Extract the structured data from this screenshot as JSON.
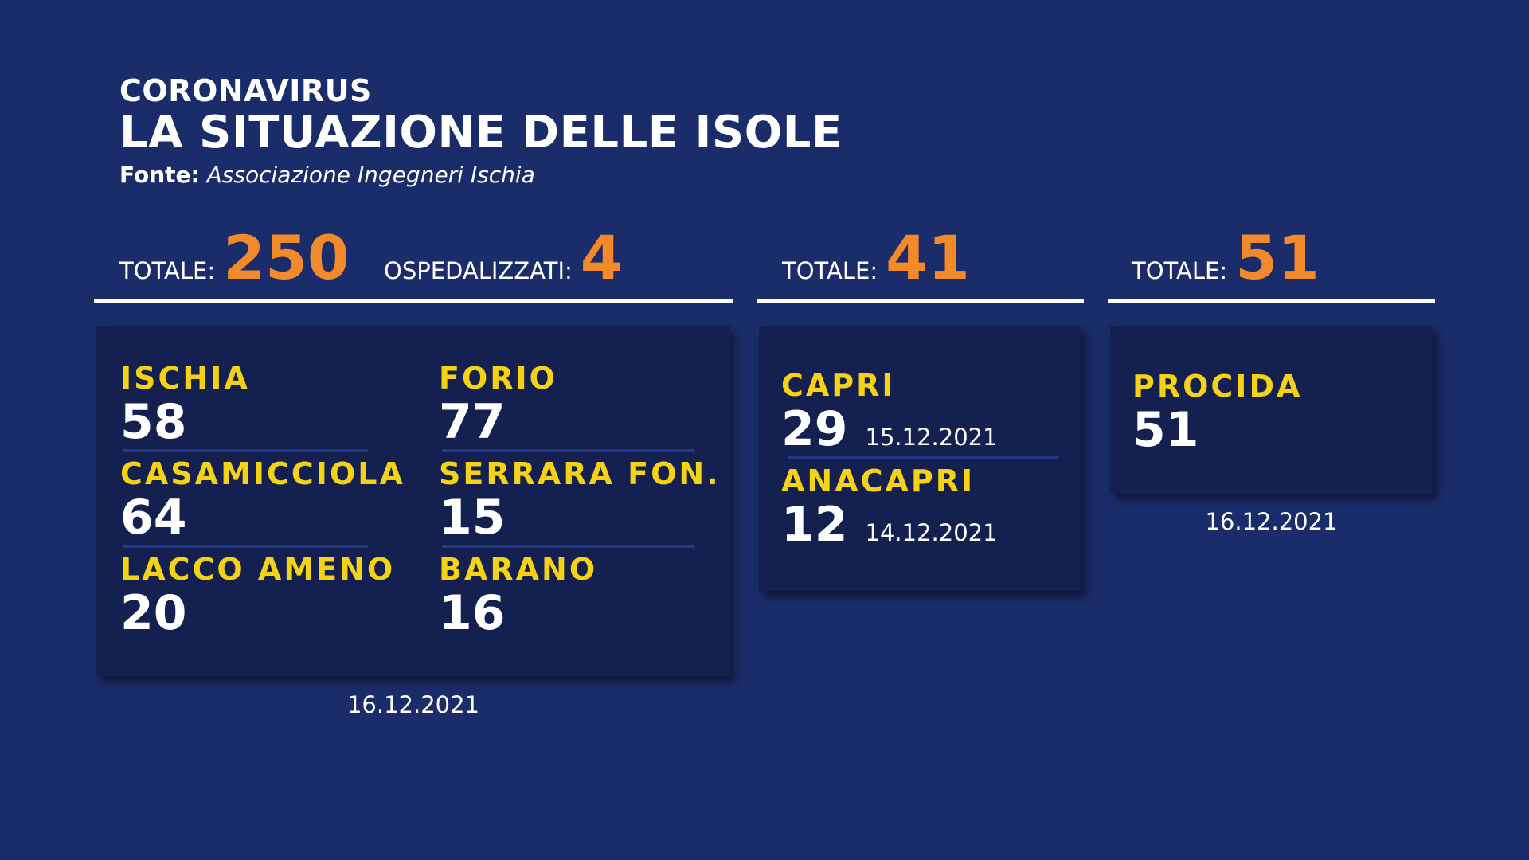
{
  "header": {
    "kicker": "CORONAVIRUS",
    "title": "LA SITUAZIONE DELLE ISOLE",
    "source_label": "Fonte:",
    "source_value": "Associazione Ingegneri Ischia"
  },
  "ischia": {
    "total_label": "TOTALE:",
    "total_value": "250",
    "hosp_label": "OSPEDALIZZATI:",
    "hosp_value": "4",
    "comuni": [
      {
        "name": "ISCHIA",
        "value": "58"
      },
      {
        "name": "FORIO",
        "value": "77"
      },
      {
        "name": "CASAMICCIOLA",
        "value": "64"
      },
      {
        "name": "SERRARA FON.",
        "value": "15"
      },
      {
        "name": "LACCO AMENO",
        "value": "20"
      },
      {
        "name": "BARANO",
        "value": "16"
      }
    ],
    "date": "16.12.2021"
  },
  "capri": {
    "total_label": "TOTALE:",
    "total_value": "41",
    "comuni": [
      {
        "name": "CAPRI",
        "value": "29",
        "date": "15.12.2021"
      },
      {
        "name": "ANACAPRI",
        "value": "12",
        "date": "14.12.2021"
      }
    ]
  },
  "procida": {
    "total_label": "TOTALE:",
    "total_value": "51",
    "comuni": [
      {
        "name": "PROCIDA",
        "value": "51"
      }
    ],
    "date": "16.12.2021"
  },
  "colors": {
    "background": "#1b2c6a",
    "card": "#142150",
    "accent_orange": "#f28a2c",
    "accent_yellow": "#f5d213"
  }
}
